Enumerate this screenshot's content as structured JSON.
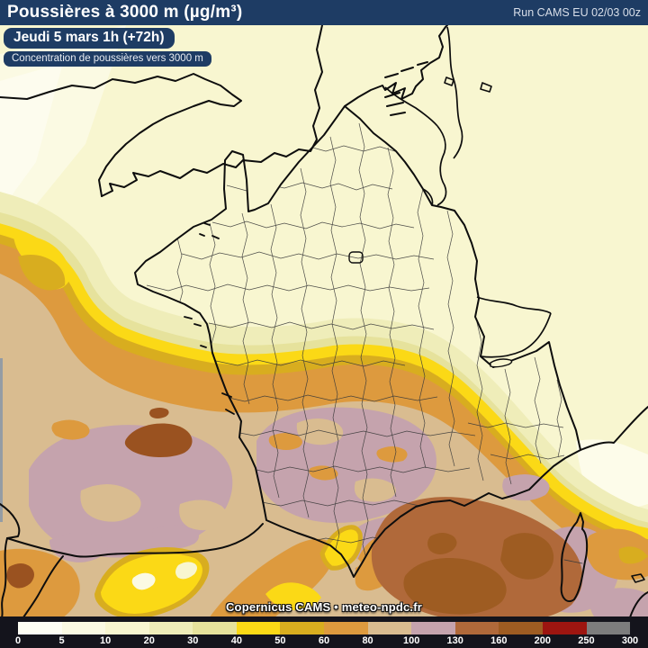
{
  "header": {
    "title": "Poussières à 3000 m (µg/m³)",
    "run_label": "Run CAMS EU 02/03 00z",
    "bar_color": "#1e3c64"
  },
  "forecast": {
    "valid_time": "Jeudi 5 mars 1h (+72h)",
    "subtitle": "Concentration de poussières vers 3000 m"
  },
  "map": {
    "attribution": "Copernicus CAMS • meteo-npdc.fr",
    "region": "France / Western Europe"
  },
  "legend": {
    "unit": "µg/m³",
    "ticks": [
      "0",
      "5",
      "10",
      "20",
      "30",
      "40",
      "50",
      "60",
      "80",
      "100",
      "130",
      "160",
      "200",
      "250",
      "300"
    ],
    "segments": [
      {
        "range": "0–5",
        "color": "#fefef4"
      },
      {
        "range": "5–10",
        "color": "#fbfae3"
      },
      {
        "range": "10–20",
        "color": "#f8f6d0"
      },
      {
        "range": "20–30",
        "color": "#efedb9"
      },
      {
        "range": "30–40",
        "color": "#e6e29c"
      },
      {
        "range": "40–50",
        "color": "#fbd916"
      },
      {
        "range": "50–60",
        "color": "#d8ad1f"
      },
      {
        "range": "60–80",
        "color": "#dd9a3e"
      },
      {
        "range": "80–100",
        "color": "#d9bc90"
      },
      {
        "range": "100–130",
        "color": "#c5a3ad"
      },
      {
        "range": "130–160",
        "color": "#b0693a"
      },
      {
        "range": "160–200",
        "color": "#9e5c22"
      },
      {
        "range": "200–250",
        "color": "#9d1510"
      },
      {
        "range": "250–300",
        "color": "#7d7d7d"
      }
    ]
  }
}
